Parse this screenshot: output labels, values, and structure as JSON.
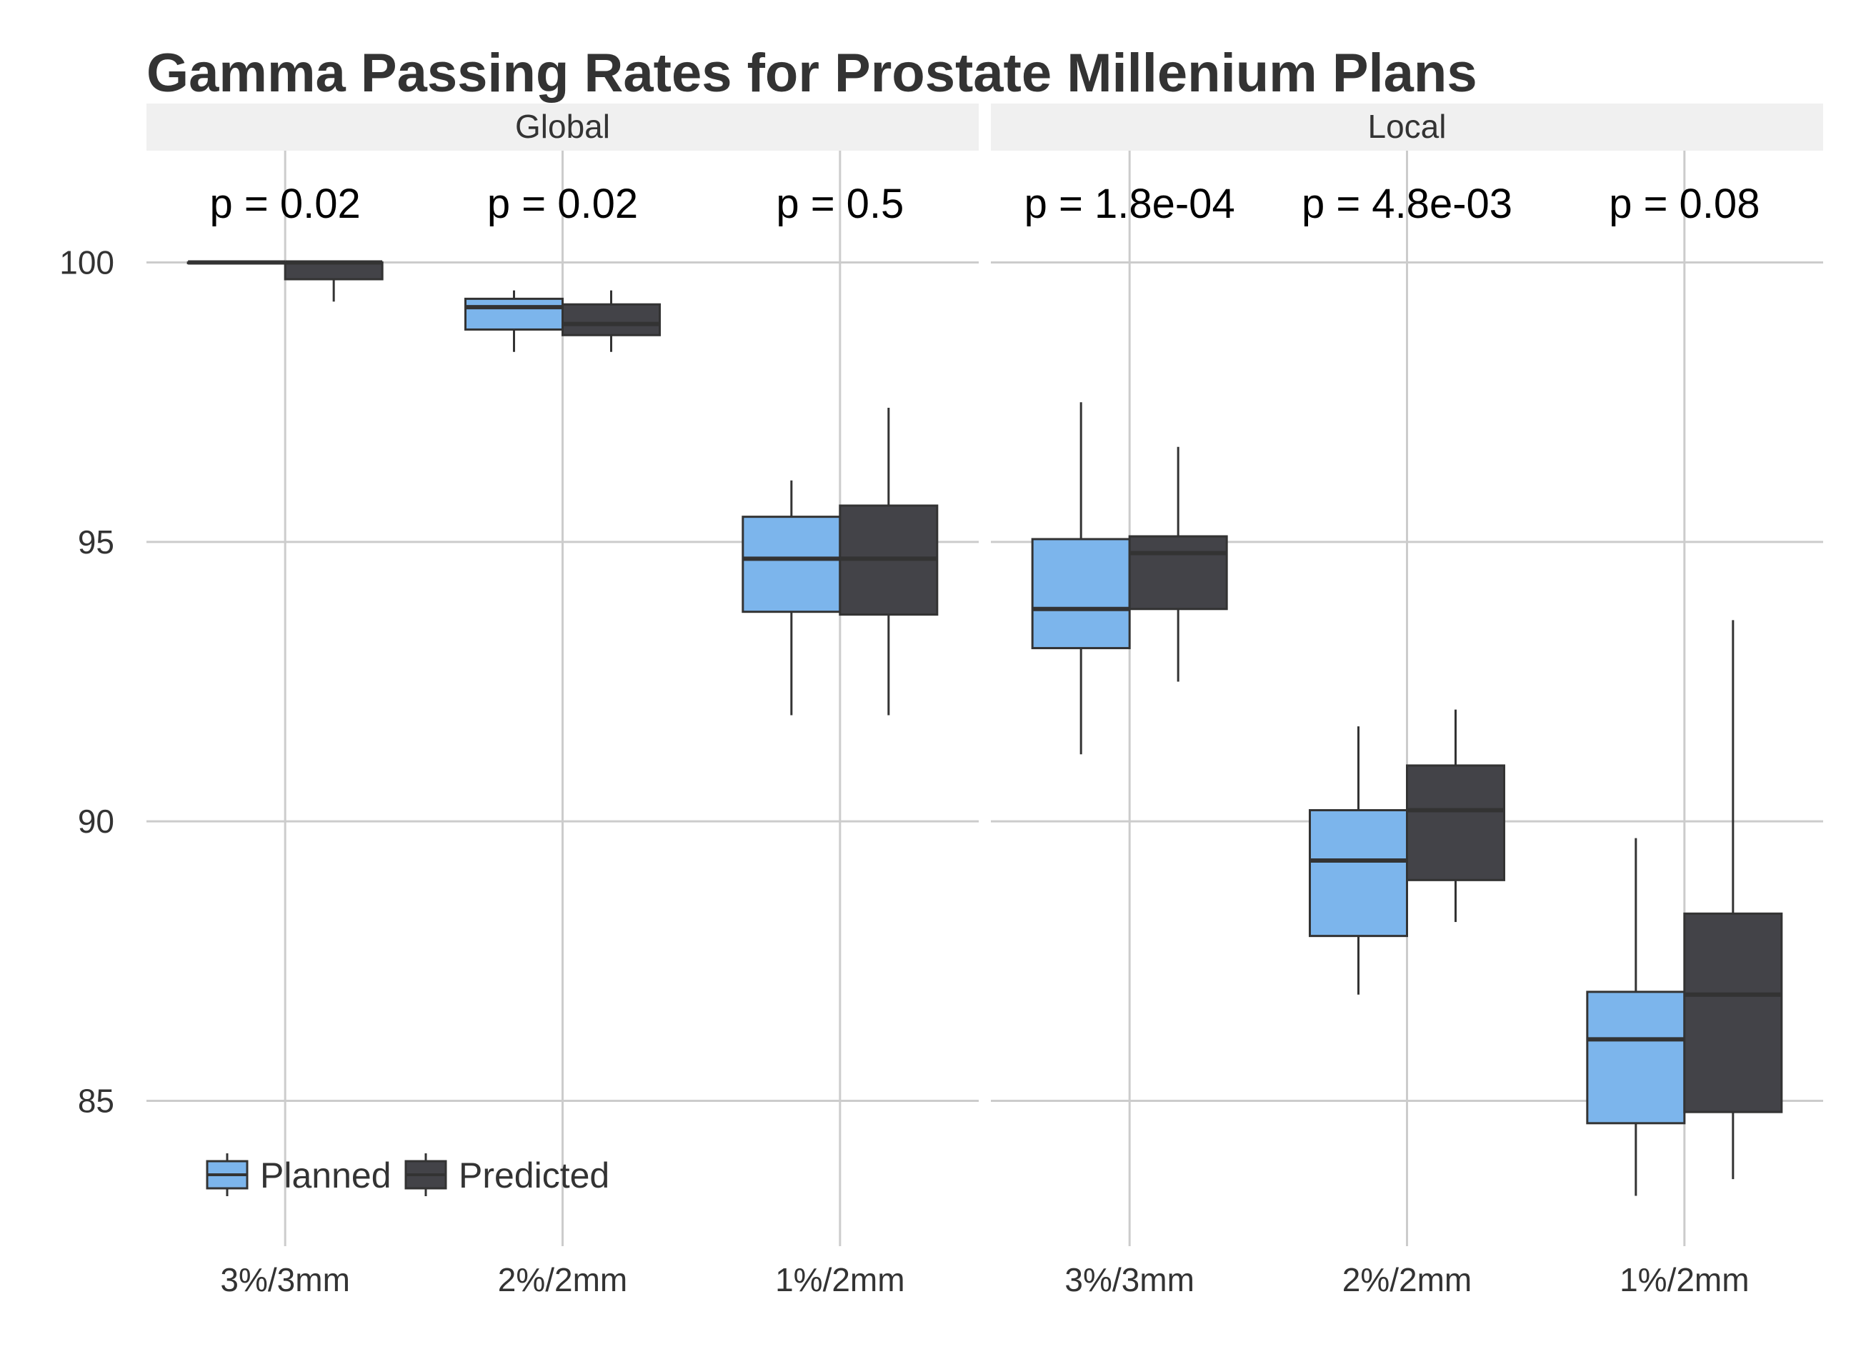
{
  "chart_data": {
    "type": "box",
    "title": "Gamma Passing Rates for Prostate Millenium Plans",
    "xlabel": "",
    "ylabel": "",
    "ylim": [
      82.4,
      102.0
    ],
    "y_ticks": [
      85,
      90,
      95,
      100
    ],
    "grid": true,
    "legend_position": "bottom-left",
    "colors": {
      "Planned": "#7cb5ec",
      "Predicted": "#434348",
      "grid": "#cccccc",
      "strip": "#f0f0f0",
      "box_stroke": "#333333"
    },
    "series_names": [
      "Planned",
      "Predicted"
    ],
    "categories": [
      "3%/3mm",
      "2%/2mm",
      "1%/2mm"
    ],
    "panels": [
      {
        "name": "Global",
        "groups": [
          {
            "category": "3%/3mm",
            "p_label": "p = 0.02",
            "boxes": [
              {
                "series": "Planned",
                "min": 100.0,
                "q1": 100.0,
                "median": 100.0,
                "q3": 100.0,
                "max": 100.0
              },
              {
                "series": "Predicted",
                "min": 99.3,
                "q1": 99.7,
                "median": 100.0,
                "q3": 100.0,
                "max": 100.0
              }
            ]
          },
          {
            "category": "2%/2mm",
            "p_label": "p = 0.02",
            "boxes": [
              {
                "series": "Planned",
                "min": 98.4,
                "q1": 98.8,
                "median": 99.2,
                "q3": 99.35,
                "max": 99.5
              },
              {
                "series": "Predicted",
                "min": 98.4,
                "q1": 98.7,
                "median": 98.9,
                "q3": 99.25,
                "max": 99.5
              }
            ]
          },
          {
            "category": "1%/2mm",
            "p_label": "p = 0.5",
            "boxes": [
              {
                "series": "Planned",
                "min": 91.9,
                "q1": 93.75,
                "median": 94.7,
                "q3": 95.45,
                "max": 96.1
              },
              {
                "series": "Predicted",
                "min": 91.9,
                "q1": 93.7,
                "median": 94.7,
                "q3": 95.65,
                "max": 97.4
              }
            ]
          }
        ]
      },
      {
        "name": "Local",
        "groups": [
          {
            "category": "3%/3mm",
            "p_label": "p = 1.8e-04",
            "boxes": [
              {
                "series": "Planned",
                "min": 91.2,
                "q1": 93.1,
                "median": 93.8,
                "q3": 95.05,
                "max": 97.5
              },
              {
                "series": "Predicted",
                "min": 92.5,
                "q1": 93.8,
                "median": 94.8,
                "q3": 95.1,
                "max": 96.7
              }
            ]
          },
          {
            "category": "2%/2mm",
            "p_label": "p = 4.8e-03",
            "boxes": [
              {
                "series": "Planned",
                "min": 86.9,
                "q1": 87.95,
                "median": 89.3,
                "q3": 90.2,
                "max": 91.7
              },
              {
                "series": "Predicted",
                "min": 88.2,
                "q1": 88.95,
                "median": 90.2,
                "q3": 91.0,
                "max": 92.0
              }
            ]
          },
          {
            "category": "1%/2mm",
            "p_label": "p = 0.08",
            "boxes": [
              {
                "series": "Planned",
                "min": 83.3,
                "q1": 84.6,
                "median": 86.1,
                "q3": 86.95,
                "max": 89.7
              },
              {
                "series": "Predicted",
                "min": 83.6,
                "q1": 84.8,
                "median": 86.9,
                "q3": 88.35,
                "max": 93.6
              }
            ]
          }
        ]
      }
    ]
  }
}
